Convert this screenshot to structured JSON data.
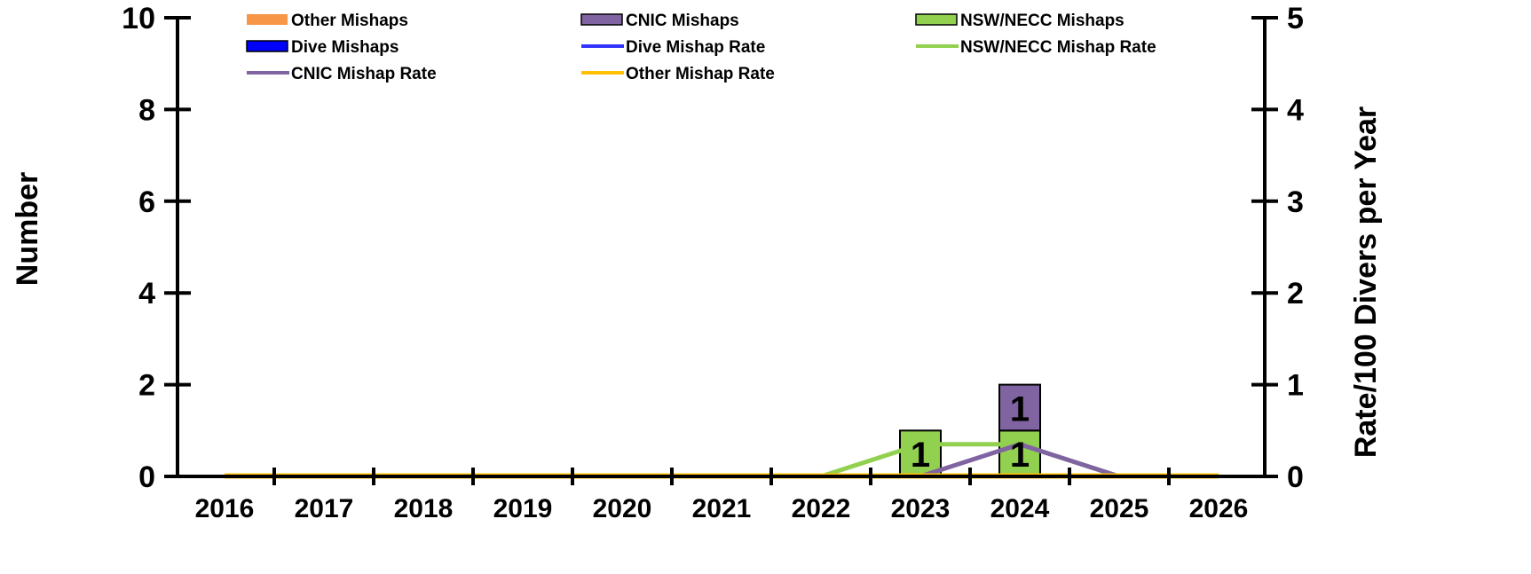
{
  "chart_data": {
    "type": "bar",
    "categories": [
      "2016",
      "2017",
      "2018",
      "2019",
      "2020",
      "2021",
      "2022",
      "2023",
      "2024",
      "2025",
      "2026"
    ],
    "ylabel": "Number",
    "y2label": "Rate/100 Divers per Year",
    "ylim": [
      0,
      10
    ],
    "y2lim": [
      0,
      5
    ],
    "yticks": [
      "0",
      "2",
      "4",
      "6",
      "8",
      "10"
    ],
    "y2ticks": [
      "0",
      "1",
      "2",
      "3",
      "4",
      "5"
    ],
    "bar_series": [
      {
        "name": "NSW/NECC Mishaps",
        "color": "#92d050",
        "values": [
          0,
          0,
          0,
          0,
          0,
          0,
          0,
          1,
          1,
          0,
          0
        ]
      },
      {
        "name": "CNIC Mishaps",
        "color": "#8064a2",
        "values": [
          0,
          0,
          0,
          0,
          0,
          0,
          0,
          0,
          1,
          0,
          0
        ]
      },
      {
        "name": "Other Mishaps",
        "color": "#f79646",
        "values": [
          0,
          0,
          0,
          0,
          0,
          0,
          0,
          0,
          0,
          0,
          0
        ]
      },
      {
        "name": "Dive Mishaps",
        "color": "#0000ff",
        "values": [
          0,
          0,
          0,
          0,
          0,
          0,
          0,
          0,
          0,
          0,
          0
        ]
      }
    ],
    "data_labels": [
      {
        "category": "2023",
        "series": "NSW/NECC Mishaps",
        "text": "1"
      },
      {
        "category": "2024",
        "series": "NSW/NECC Mishaps",
        "text": "1"
      },
      {
        "category": "2024",
        "series": "CNIC Mishaps",
        "text": "1"
      }
    ],
    "line_series": [
      {
        "name": "Dive Mishap Rate",
        "color": "#3333ff",
        "values": [
          0,
          0,
          0,
          0,
          0,
          0,
          0,
          0,
          0,
          0,
          0
        ]
      },
      {
        "name": "NSW/NECC Mishap Rate",
        "color": "#92d050",
        "values": [
          0,
          0,
          0,
          0,
          0,
          0,
          0,
          0.35,
          0.35,
          0,
          0
        ]
      },
      {
        "name": "CNIC Mishap Rate",
        "color": "#8064a2",
        "values": [
          0,
          0,
          0,
          0,
          0,
          0,
          0,
          0,
          0.35,
          0,
          0
        ]
      },
      {
        "name": "Other Mishap Rate",
        "color": "#ffc000",
        "values": [
          0,
          0,
          0,
          0,
          0,
          0,
          0,
          0,
          0,
          0,
          0
        ]
      }
    ],
    "legend": [
      {
        "label": "Other Mishaps",
        "kind": "bar",
        "color": "#f79646"
      },
      {
        "label": "CNIC Mishaps",
        "kind": "bar",
        "color": "#8064a2"
      },
      {
        "label": "NSW/NECC Mishaps",
        "kind": "bar",
        "color": "#92d050"
      },
      {
        "label": "Dive Mishaps",
        "kind": "bar",
        "color": "#0000ff"
      },
      {
        "label": "Dive Mishap Rate",
        "kind": "line",
        "color": "#3333ff"
      },
      {
        "label": "NSW/NECC Mishap Rate",
        "kind": "line",
        "color": "#92d050"
      },
      {
        "label": "CNIC Mishap Rate",
        "kind": "line",
        "color": "#8064a2"
      },
      {
        "label": "Other Mishap Rate",
        "kind": "line",
        "color": "#ffc000"
      }
    ],
    "legend_position": "top"
  }
}
